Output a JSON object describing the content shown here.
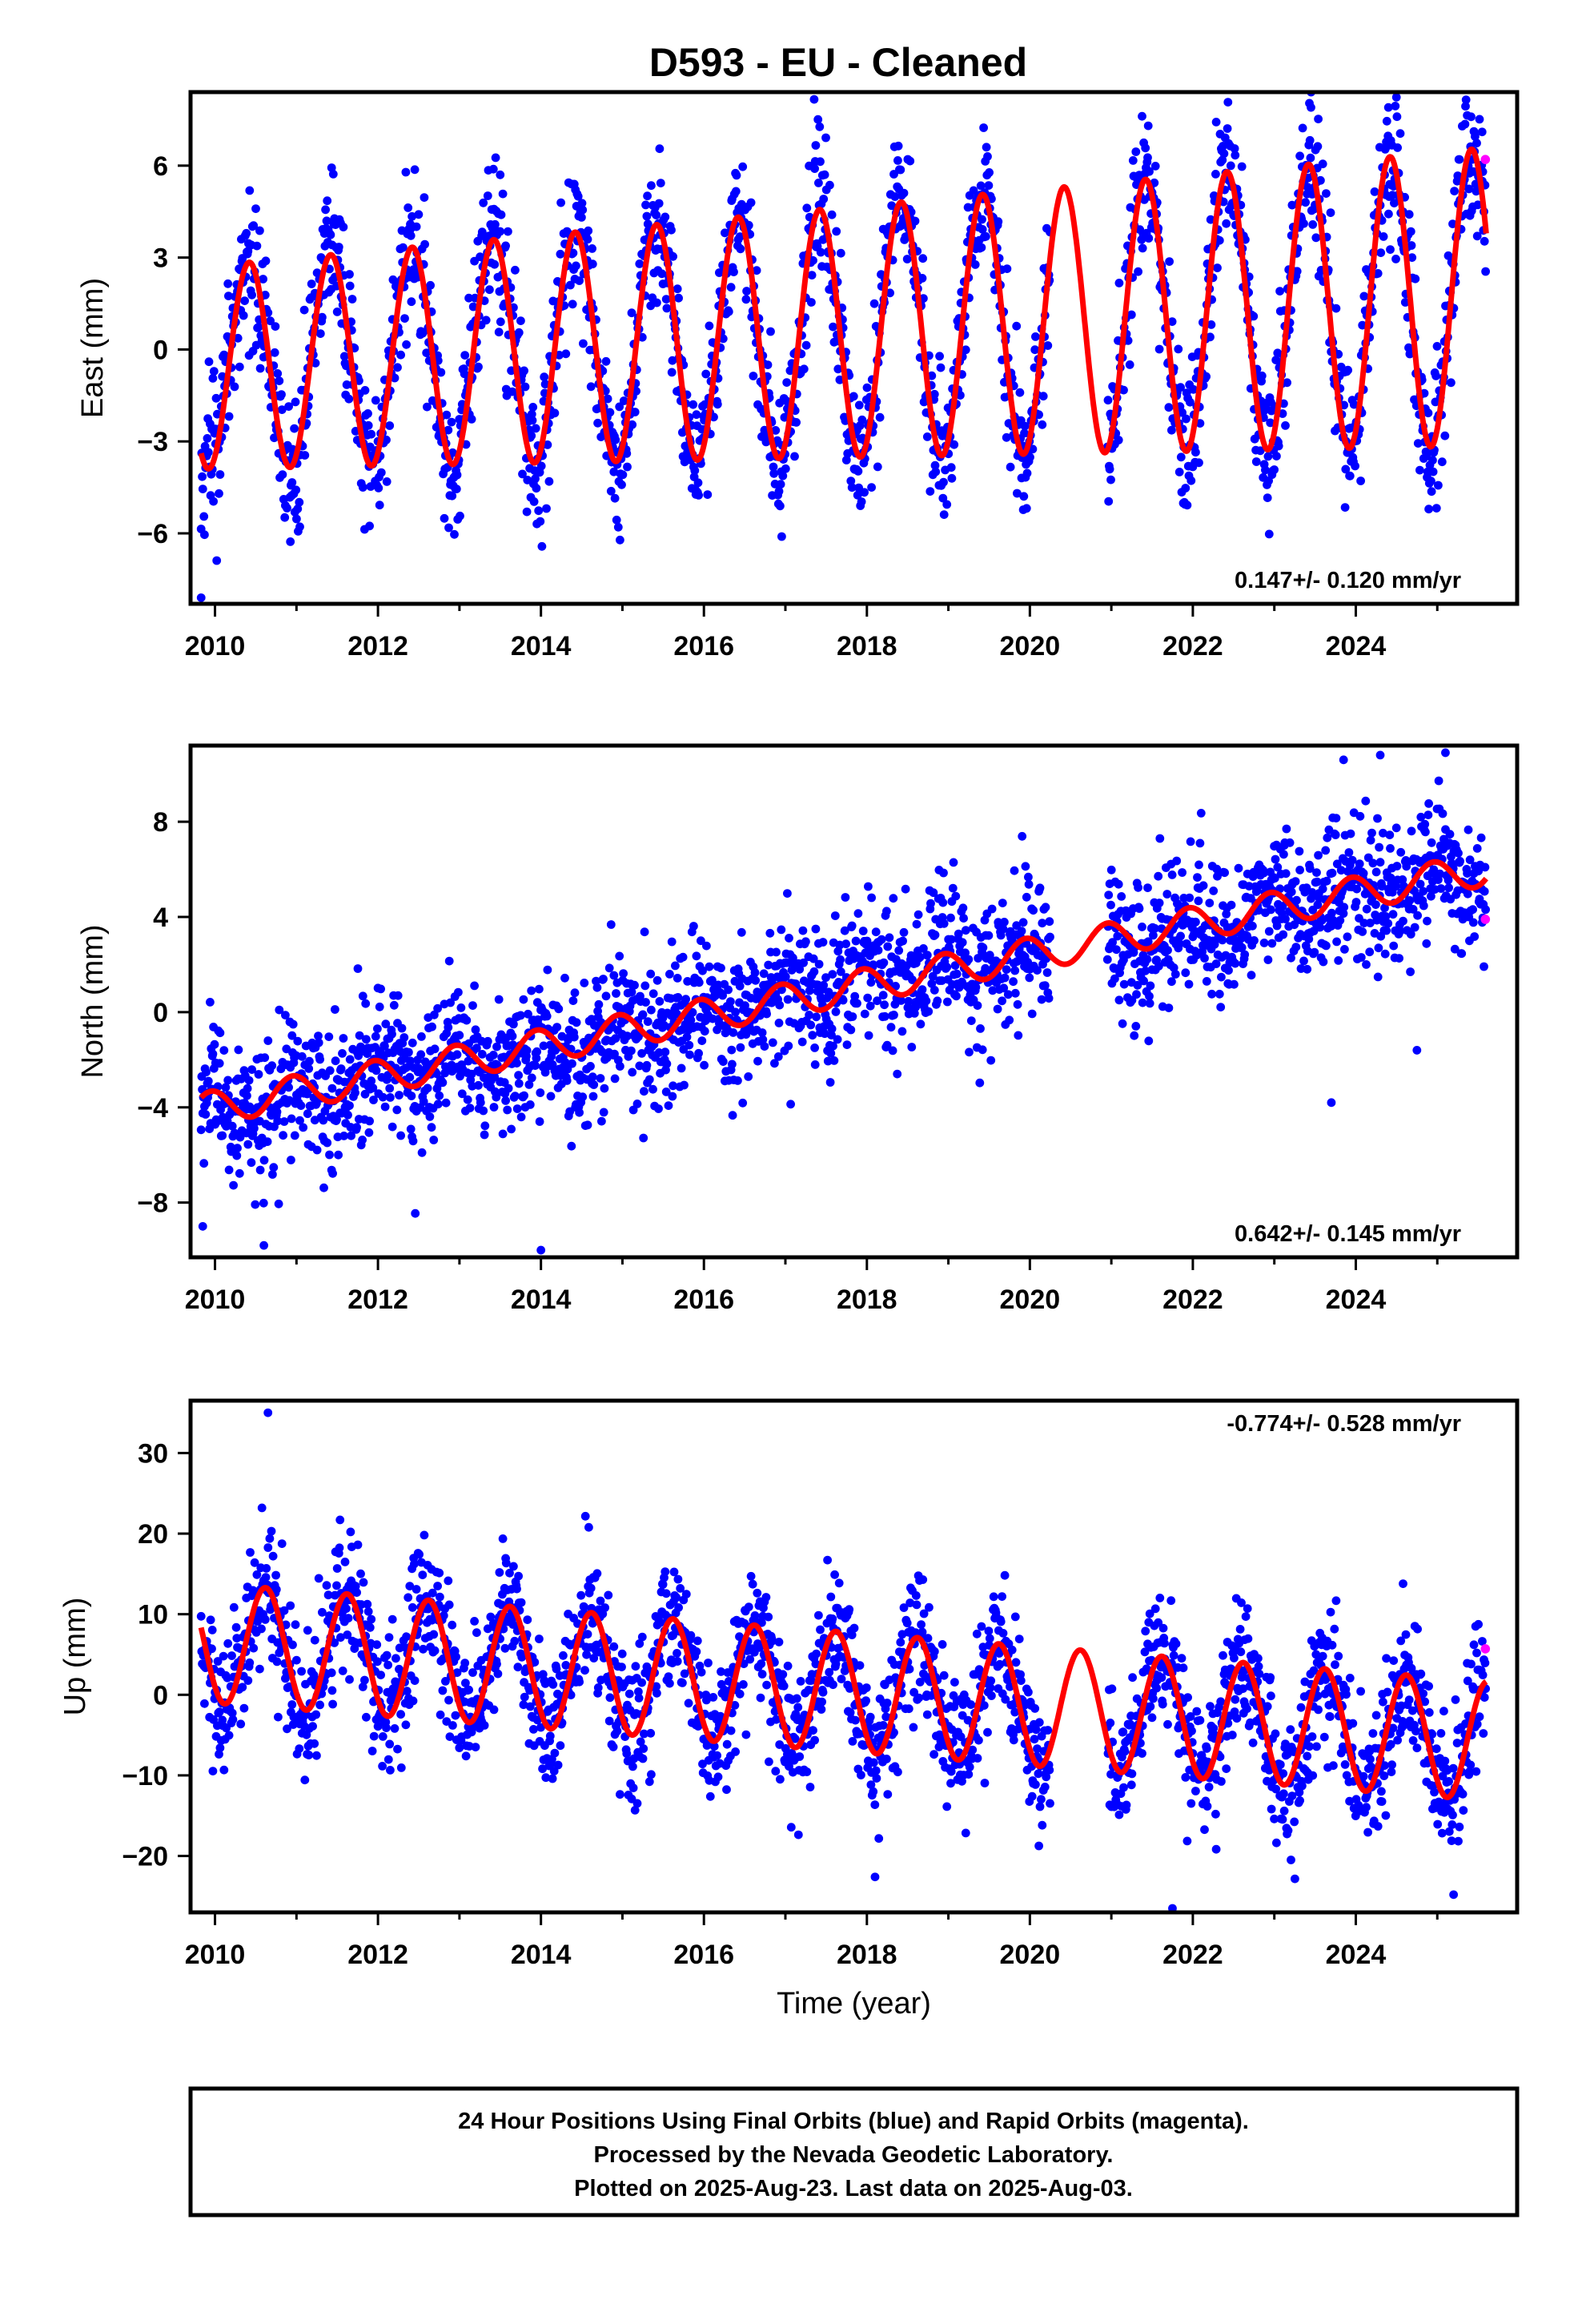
{
  "title": "D593  - EU - Cleaned",
  "colors": {
    "final": "#0000ff",
    "rapid": "#ff00ff",
    "model": "#ff0000",
    "frame": "#000000"
  },
  "footer": {
    "line1": "24 Hour Positions Using Final Orbits (blue) and Rapid Orbits (magenta).",
    "line2": "Processed by the Nevada Geodetic Laboratory.",
    "line3": "Plotted on 2025-Aug-23. Last data on 2025-Aug-03."
  },
  "chart_data": [
    {
      "type": "scatter",
      "name": "east",
      "ylabel": "East (mm)",
      "xlabel": "",
      "rate_label": "0.147+/- 0.120 mm/yr",
      "rate_position": "bottom-right",
      "xlim": [
        2009.7,
        2025.98
      ],
      "ylim": [
        -8.3,
        8.4
      ],
      "xticks": [
        2010,
        2012,
        2014,
        2016,
        2018,
        2020,
        2022,
        2024
      ],
      "yticks": [
        -6,
        -3,
        0,
        3,
        6
      ],
      "model": {
        "start": 2009.83,
        "end": 2025.6,
        "offset": -0.6,
        "trend": 0.147,
        "amplitude": 3.3,
        "amplitude_growth": 0.03,
        "period_years": 1.0,
        "peak_phase": 0.42,
        "noise_sd": 1.2
      },
      "gap": [
        2020.25,
        2020.95
      ],
      "rapid_point": {
        "x": 2025.59,
        "y": 6.2
      },
      "outliers": [
        {
          "x": 2009.83,
          "y": -8.1
        },
        {
          "x": 2013.5,
          "y": 5.7
        },
        {
          "x": 2023.45,
          "y": 7.9
        },
        {
          "x": 2024.4,
          "y": 7.9
        },
        {
          "x": 2025.55,
          "y": 7.1
        }
      ]
    },
    {
      "type": "scatter",
      "name": "north",
      "ylabel": "North (mm)",
      "xlabel": "",
      "rate_label": "0.642+/- 0.145 mm/yr",
      "rate_position": "bottom-right",
      "xlim": [
        2009.7,
        2025.98
      ],
      "ylim": [
        -10.3,
        11.2
      ],
      "xticks": [
        2010,
        2012,
        2014,
        2016,
        2018,
        2020,
        2022,
        2024
      ],
      "yticks": [
        -8,
        -4,
        0,
        4,
        8
      ],
      "model": {
        "start": 2009.83,
        "end": 2025.6,
        "offset": -4.1,
        "trend": 0.642,
        "amplitude": 0.7,
        "amplitude_growth": 0.0,
        "period_years": 1.0,
        "peak_phase": 0.95,
        "noise_sd": 1.5
      },
      "gap": [
        2020.25,
        2020.95
      ],
      "rapid_point": {
        "x": 2025.59,
        "y": 3.9
      },
      "outliers": [
        {
          "x": 2009.85,
          "y": -9.0
        },
        {
          "x": 2010.6,
          "y": -9.8
        },
        {
          "x": 2014.0,
          "y": -10.0
        },
        {
          "x": 2023.85,
          "y": 10.6
        },
        {
          "x": 2024.3,
          "y": 10.8
        },
        {
          "x": 2025.1,
          "y": 10.9
        },
        {
          "x": 2023.7,
          "y": -3.8
        },
        {
          "x": 2024.75,
          "y": -1.6
        }
      ]
    },
    {
      "type": "scatter",
      "name": "up",
      "ylabel": "Up (mm)",
      "xlabel": "Time (year)",
      "rate_label": "-0.774+/- 0.528 mm/yr",
      "rate_position": "top-right",
      "xlim": [
        2009.7,
        2025.98
      ],
      "ylim": [
        -27,
        36.5
      ],
      "xticks": [
        2010,
        2012,
        2014,
        2016,
        2018,
        2020,
        2022,
        2024
      ],
      "yticks": [
        -20,
        -10,
        0,
        10,
        20,
        30
      ],
      "model": {
        "start": 2009.83,
        "end": 2025.6,
        "offset": 6.5,
        "trend": -0.774,
        "amplitude": 7.4,
        "amplitude_growth": 0.0,
        "period_years": 1.0,
        "peak_phase": 0.62,
        "noise_sd": 4.2
      },
      "gap": [
        2020.25,
        2020.95
      ],
      "rapid_point": {
        "x": 2025.59,
        "y": 5.7
      },
      "outliers": [
        {
          "x": 2010.65,
          "y": 35.0
        },
        {
          "x": 2021.75,
          "y": -26.5
        },
        {
          "x": 2018.1,
          "y": -22.6
        },
        {
          "x": 2025.2,
          "y": -24.8
        }
      ]
    }
  ]
}
